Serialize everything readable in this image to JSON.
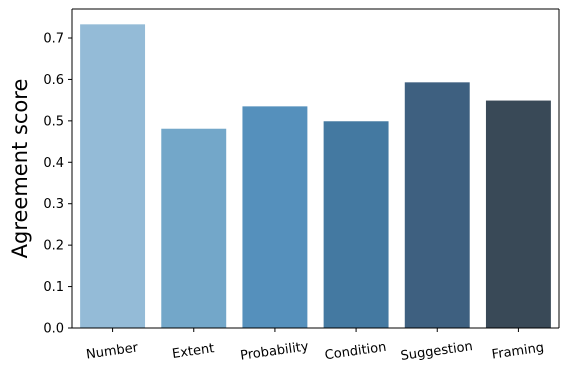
{
  "chart_data": {
    "type": "bar",
    "categories": [
      "Number",
      "Extent",
      "Probability",
      "Condition",
      "Suggestion",
      "Framing"
    ],
    "values": [
      0.733,
      0.481,
      0.535,
      0.499,
      0.593,
      0.549
    ],
    "colors": [
      "#94bbd7",
      "#73a7c9",
      "#5590bc",
      "#4479a1",
      "#3e6080",
      "#394957"
    ],
    "title": "",
    "xlabel": "",
    "ylabel": "Agreement score",
    "ylim": [
      0,
      0.77
    ],
    "yticks": [
      0.0,
      0.1,
      0.2,
      0.3,
      0.4,
      0.5,
      0.6,
      0.7
    ],
    "ytick_labels": [
      "0.0",
      "0.1",
      "0.2",
      "0.3",
      "0.4",
      "0.5",
      "0.6",
      "0.7"
    ],
    "grid": false,
    "legend": "none"
  }
}
